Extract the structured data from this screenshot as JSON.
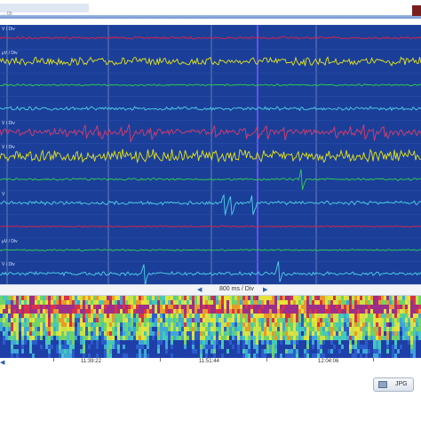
{
  "window": {
    "title": "... (3)"
  },
  "channels": [
    {
      "label": "V / Div",
      "color": "#e0224a",
      "amp": 1.5,
      "noise": 0.7,
      "spikes": 0
    },
    {
      "label": "µV / Div",
      "color": "#e6e617",
      "amp": 4,
      "noise": 1.0,
      "spikes": 0
    },
    {
      "label": "",
      "color": "#30d44a",
      "amp": 1.2,
      "noise": 0.5,
      "spikes": 0
    },
    {
      "label": "",
      "color": "#4fd2e8",
      "amp": 2,
      "noise": 0.8,
      "spikes": 0
    },
    {
      "label": "V / Div",
      "color": "#e03a6a",
      "amp": 3,
      "noise": 1.0,
      "spikes": 18
    },
    {
      "label": "V / Div",
      "color": "#e6e617",
      "amp": 5,
      "noise": 1.2,
      "spikes": 0
    },
    {
      "label": "",
      "color": "#30d44a",
      "amp": 1.5,
      "noise": 0.6,
      "spikes": 1
    },
    {
      "label": "V",
      "color": "#4fd2e8",
      "amp": 2,
      "noise": 0.8,
      "spikes": 3
    },
    {
      "label": "",
      "color": "#e0224a",
      "amp": 1.2,
      "noise": 0.5,
      "spikes": 0
    },
    {
      "label": "µV / Div",
      "color": "#30d44a",
      "amp": 1.2,
      "noise": 0.5,
      "spikes": 0
    },
    {
      "label": "V / Div",
      "color": "#4fd2e8",
      "amp": 2,
      "noise": 0.8,
      "spikes": 2
    }
  ],
  "timebar": {
    "scale_label": "800 ms / Div",
    "prev_arrow": "◀",
    "next_arrow": "▶"
  },
  "ruler": {
    "scroll_arrow": "◀",
    "timestamps": [
      "11:39:22",
      "11:51:44",
      "12:04:06"
    ]
  },
  "footer": {
    "jpg_label": "JPG"
  },
  "colors": {
    "eeg_background": "#1b3f99",
    "grid": "#9aa6c4",
    "cursor": "#7b5cff"
  }
}
